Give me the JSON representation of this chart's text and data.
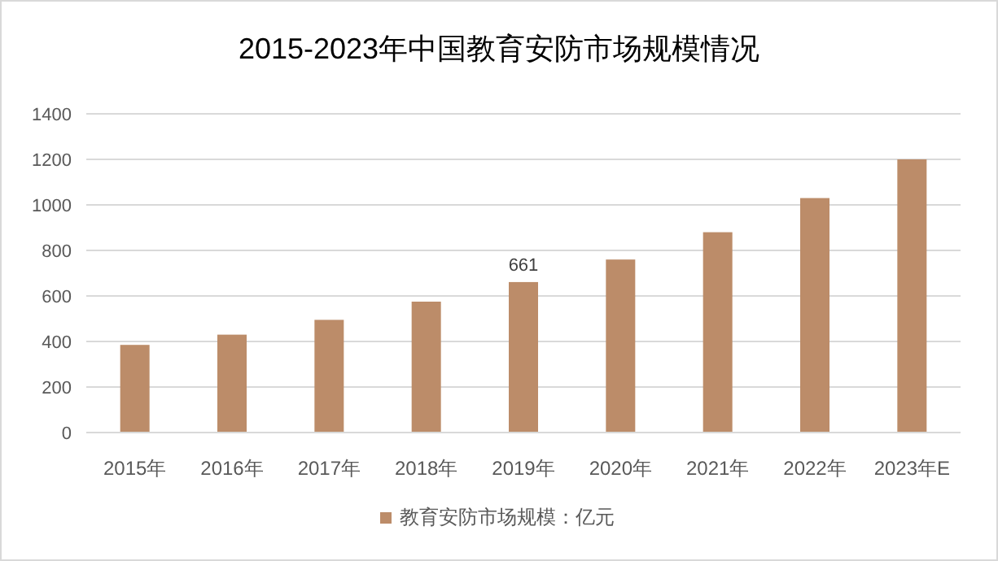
{
  "chart_data": {
    "type": "bar",
    "title": "2015-2023年中国教育安防市场规模情况",
    "categories": [
      "2015年",
      "2016年",
      "2017年",
      "2018年",
      "2019年",
      "2020年",
      "2021年",
      "2022年",
      "2023年E"
    ],
    "series": [
      {
        "name": "教育安防市场规模：亿元",
        "color": "#bc8c69",
        "values": [
          385,
          430,
          495,
          575,
          661,
          760,
          880,
          1030,
          1200
        ],
        "value_labels": [
          null,
          null,
          null,
          null,
          "661",
          null,
          null,
          null,
          null
        ]
      }
    ],
    "ylim": [
      0,
      1400
    ],
    "yticks": [
      0,
      200,
      400,
      600,
      800,
      1000,
      1200,
      1400
    ],
    "grid": "y",
    "legend": "bottom"
  }
}
